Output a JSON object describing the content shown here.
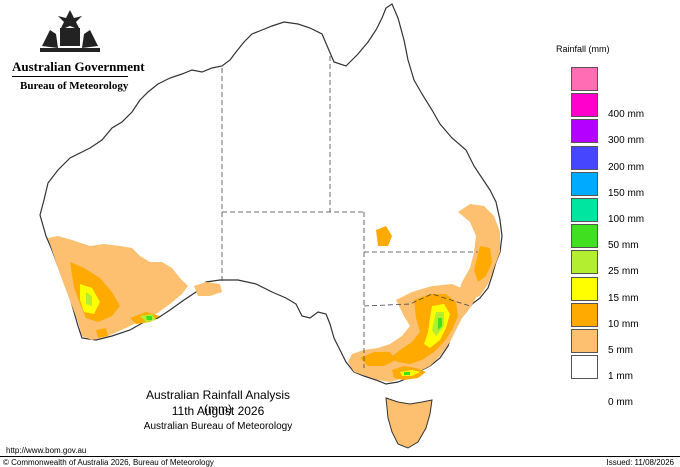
{
  "header": {
    "government": "Australian Government",
    "bureau": "Bureau of Meteorology"
  },
  "legend": {
    "title": "Rainfall (mm)",
    "items": [
      {
        "label": "",
        "color": "#ff6eb4"
      },
      {
        "label": "400 mm",
        "color": "#ff00cc"
      },
      {
        "label": "300 mm",
        "color": "#b400ff"
      },
      {
        "label": "200 mm",
        "color": "#4646ff"
      },
      {
        "label": "150 mm",
        "color": "#00aaff"
      },
      {
        "label": "100 mm",
        "color": "#00e6a0"
      },
      {
        "label": "50 mm",
        "color": "#40e020"
      },
      {
        "label": "25 mm",
        "color": "#b4ee30"
      },
      {
        "label": "15 mm",
        "color": "#ffff00"
      },
      {
        "label": "10 mm",
        "color": "#ffaa00"
      },
      {
        "label": "5 mm",
        "color": "#fdc070"
      },
      {
        "label": "1 mm",
        "color": "#ffffff"
      },
      {
        "label": "0 mm",
        "color": ""
      }
    ]
  },
  "map": {
    "title": "Australian Rainfall Analysis (mm)",
    "date": "11th August 2026",
    "agency": "Australian Bureau of Meteorology",
    "colors": {
      "outline": "#333333",
      "border": "#444444"
    }
  },
  "footer": {
    "url": "http://www.bom.gov.au",
    "copyright": "© Commonwealth of Australia 2026, Bureau of Meteorology",
    "issued": "Issued: 11/08/2026"
  }
}
